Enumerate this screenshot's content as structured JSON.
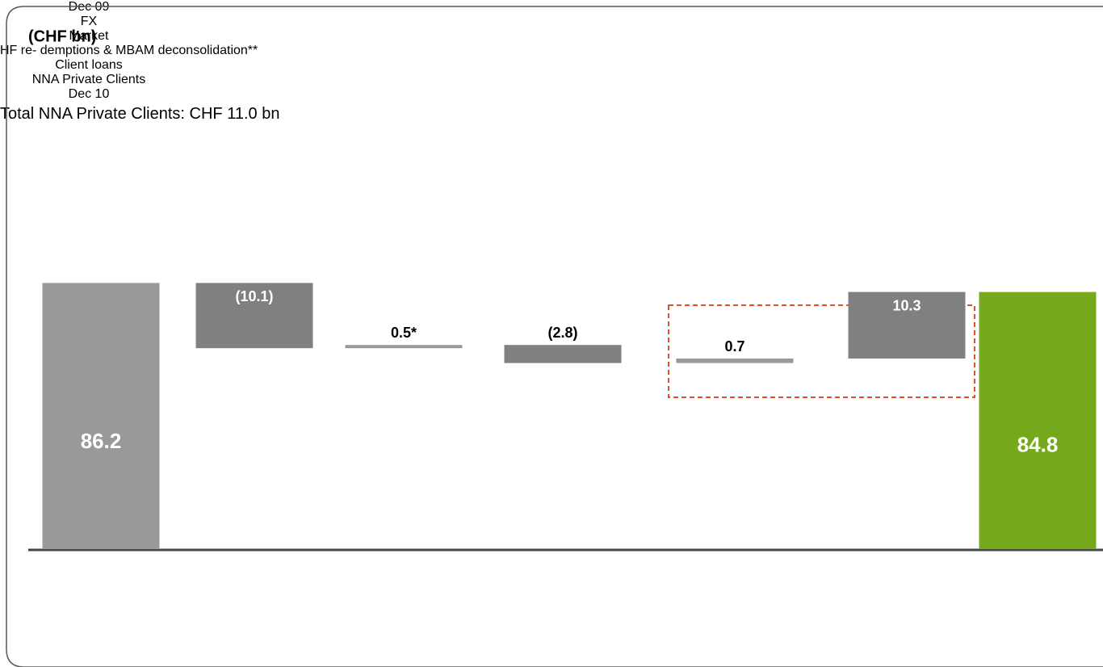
{
  "chart_data": {
    "type": "waterfall",
    "title": "(CHF bn)",
    "categories": [
      "Dec 09",
      "FX",
      "Market",
      "HF re-\ndemptions &\nMBAM deconsolidation**",
      "Client loans",
      "NNA\nPrivate Clients",
      "Dec 10"
    ],
    "values": [
      86.2,
      -10.1,
      0.5,
      -2.8,
      0.7,
      10.3,
      84.8
    ],
    "value_labels": [
      "86.2",
      "(10.1)",
      "0.5*",
      "(2.8)",
      "0.7",
      "10.3",
      "84.8"
    ],
    "totals": [
      true,
      false,
      false,
      false,
      false,
      false,
      true
    ],
    "colors": [
      "#999999",
      "#808080",
      "#999999",
      "#808080",
      "#999999",
      "#808080",
      "#76a81c"
    ],
    "ylim": [
      45,
      100
    ],
    "annotation": "Total NNA Private\nClients: CHF 11.0 bn"
  }
}
